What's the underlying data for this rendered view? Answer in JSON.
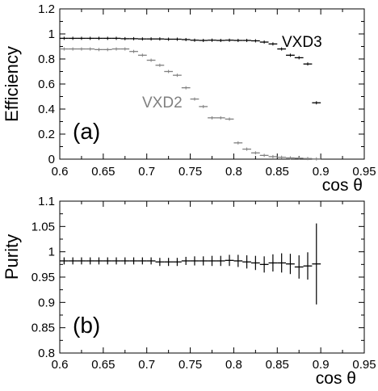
{
  "chart_data": [
    {
      "type": "scatter",
      "panel_label": "(a)",
      "ylabel": "Efficiency",
      "xlabel": "cos θ",
      "xlim": [
        0.6,
        0.95
      ],
      "ylim": [
        0,
        1.2
      ],
      "xticks": [
        "0.6",
        "0.65",
        "0.7",
        "0.75",
        "0.8",
        "0.85",
        "0.9",
        "0.95"
      ],
      "yticks": [
        "0",
        "0.2",
        "0.4",
        "0.6",
        "0.8",
        "1",
        "1.2"
      ],
      "grid": false,
      "series": [
        {
          "name": "VXD3",
          "color": "#000000",
          "points": [
            [
              0.605,
              0.965
            ],
            [
              0.615,
              0.965
            ],
            [
              0.625,
              0.965
            ],
            [
              0.635,
              0.965
            ],
            [
              0.645,
              0.965
            ],
            [
              0.655,
              0.965
            ],
            [
              0.665,
              0.965
            ],
            [
              0.675,
              0.962
            ],
            [
              0.685,
              0.962
            ],
            [
              0.695,
              0.96
            ],
            [
              0.705,
              0.96
            ],
            [
              0.715,
              0.96
            ],
            [
              0.725,
              0.958
            ],
            [
              0.735,
              0.958
            ],
            [
              0.745,
              0.955
            ],
            [
              0.755,
              0.95
            ],
            [
              0.765,
              0.948
            ],
            [
              0.775,
              0.95
            ],
            [
              0.785,
              0.948
            ],
            [
              0.795,
              0.95
            ],
            [
              0.805,
              0.948
            ],
            [
              0.815,
              0.948
            ],
            [
              0.825,
              0.945
            ],
            [
              0.835,
              0.935
            ],
            [
              0.845,
              0.92
            ],
            [
              0.855,
              0.88
            ],
            [
              0.865,
              0.83
            ],
            [
              0.875,
              0.81
            ],
            [
              0.885,
              0.76
            ],
            [
              0.895,
              0.45
            ]
          ]
        },
        {
          "name": "VXD2",
          "color": "#808080",
          "points": [
            [
              0.605,
              0.88
            ],
            [
              0.615,
              0.88
            ],
            [
              0.625,
              0.88
            ],
            [
              0.635,
              0.88
            ],
            [
              0.645,
              0.875
            ],
            [
              0.655,
              0.875
            ],
            [
              0.665,
              0.88
            ],
            [
              0.675,
              0.88
            ],
            [
              0.685,
              0.86
            ],
            [
              0.695,
              0.83
            ],
            [
              0.705,
              0.79
            ],
            [
              0.715,
              0.75
            ],
            [
              0.725,
              0.7
            ],
            [
              0.735,
              0.67
            ],
            [
              0.745,
              0.57
            ],
            [
              0.755,
              0.48
            ],
            [
              0.765,
              0.42
            ],
            [
              0.775,
              0.33
            ],
            [
              0.785,
              0.33
            ],
            [
              0.795,
              0.32
            ],
            [
              0.805,
              0.13
            ],
            [
              0.815,
              0.08
            ],
            [
              0.825,
              0.05
            ],
            [
              0.835,
              0.03
            ],
            [
              0.845,
              0.02
            ],
            [
              0.855,
              0.015
            ],
            [
              0.865,
              0.01
            ],
            [
              0.875,
              0.008
            ],
            [
              0.885,
              0.005
            ],
            [
              0.895,
              0.002
            ]
          ]
        }
      ]
    },
    {
      "type": "scatter",
      "panel_label": "(b)",
      "ylabel": "Purity",
      "xlabel": "cos θ",
      "xlim": [
        0.6,
        0.95
      ],
      "ylim": [
        0.8,
        1.1
      ],
      "xticks": [
        "0.6",
        "0.65",
        "0.7",
        "0.75",
        "0.8",
        "0.85",
        "0.9",
        "0.95"
      ],
      "yticks": [
        "0.8",
        "0.85",
        "0.9",
        "0.95",
        "1",
        "1.05",
        "1.1"
      ],
      "grid": false,
      "series": [
        {
          "color": "#000000",
          "points": [
            [
              0.605,
              0.982,
              0.007
            ],
            [
              0.615,
              0.982,
              0.007
            ],
            [
              0.625,
              0.982,
              0.007
            ],
            [
              0.635,
              0.982,
              0.007
            ],
            [
              0.645,
              0.982,
              0.007
            ],
            [
              0.655,
              0.982,
              0.007
            ],
            [
              0.665,
              0.982,
              0.007
            ],
            [
              0.675,
              0.982,
              0.007
            ],
            [
              0.685,
              0.982,
              0.007
            ],
            [
              0.695,
              0.982,
              0.007
            ],
            [
              0.705,
              0.982,
              0.007
            ],
            [
              0.715,
              0.98,
              0.008
            ],
            [
              0.725,
              0.98,
              0.008
            ],
            [
              0.735,
              0.98,
              0.008
            ],
            [
              0.745,
              0.982,
              0.008
            ],
            [
              0.755,
              0.982,
              0.009
            ],
            [
              0.765,
              0.982,
              0.009
            ],
            [
              0.775,
              0.982,
              0.01
            ],
            [
              0.785,
              0.982,
              0.01
            ],
            [
              0.795,
              0.983,
              0.011
            ],
            [
              0.805,
              0.982,
              0.012
            ],
            [
              0.815,
              0.98,
              0.013
            ],
            [
              0.825,
              0.978,
              0.014
            ],
            [
              0.835,
              0.975,
              0.016
            ],
            [
              0.845,
              0.978,
              0.017
            ],
            [
              0.855,
              0.978,
              0.019
            ],
            [
              0.865,
              0.976,
              0.02
            ],
            [
              0.875,
              0.97,
              0.023
            ],
            [
              0.885,
              0.972,
              0.027
            ],
            [
              0.895,
              0.976,
              0.08
            ]
          ]
        }
      ]
    }
  ]
}
